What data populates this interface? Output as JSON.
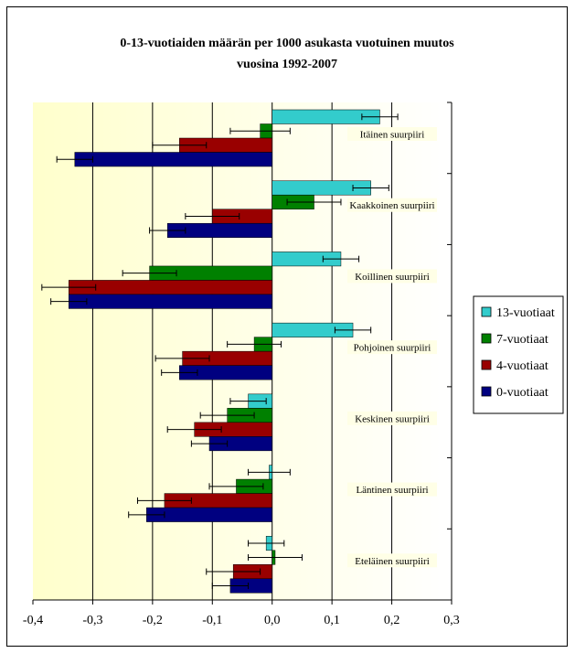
{
  "chart_data": {
    "type": "bar",
    "orientation": "horizontal",
    "title_lines": [
      "0-13-vuotiaiden määrän per 1000 asukasta vuotuinen muutos",
      "vuosina 1992-2007"
    ],
    "categories": [
      "Itäinen suurpiiri",
      "Kaakkoinen suurpiiri",
      "Koillinen suurpiiri",
      "Pohjoinen suurpiiri",
      "Keskinen suurpiiri",
      "Läntinen suurpiiri",
      "Eteläinen suurpiiri"
    ],
    "series": [
      {
        "name": "13-vuotiaat",
        "color": "#33CCCC",
        "values": [
          0.18,
          0.165,
          0.115,
          0.135,
          -0.04,
          -0.005,
          -0.01
        ],
        "errors": [
          0.03,
          0.03,
          0.03,
          0.03,
          0.03,
          0.035,
          0.03
        ]
      },
      {
        "name": "7-vuotiaat",
        "color": "#008000",
        "values": [
          -0.02,
          0.07,
          -0.205,
          -0.03,
          -0.075,
          -0.06,
          0.005
        ],
        "errors": [
          0.05,
          0.045,
          0.045,
          0.045,
          0.045,
          0.045,
          0.045
        ]
      },
      {
        "name": "4-vuotiaat",
        "color": "#990000",
        "values": [
          -0.155,
          -0.1,
          -0.34,
          -0.15,
          -0.13,
          -0.18,
          -0.065
        ],
        "errors": [
          0.045,
          0.045,
          0.045,
          0.045,
          0.045,
          0.045,
          0.045
        ]
      },
      {
        "name": "0-vuotiaat",
        "color": "#000080",
        "values": [
          -0.33,
          -0.175,
          -0.34,
          -0.155,
          -0.105,
          -0.21,
          -0.07
        ],
        "errors": [
          0.03,
          0.03,
          0.03,
          0.03,
          0.03,
          0.03,
          0.03
        ]
      }
    ],
    "legend_order": [
      "13-vuotiaat",
      "7-vuotiaat",
      "4-vuotiaat",
      "0-vuotiaat"
    ],
    "x_ticks": [
      "-0,4",
      "-0,3",
      "-0,2",
      "-0,1",
      "0,0",
      "0,1",
      "0,2",
      "0,3"
    ],
    "xlim": [
      -0.4,
      0.3
    ],
    "grid": true,
    "legend_position": "right"
  }
}
